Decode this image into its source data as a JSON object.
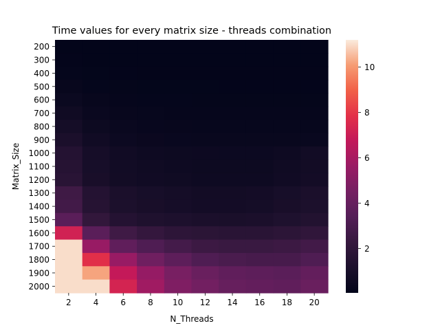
{
  "chart_data": {
    "type": "heatmap",
    "title": "Time values for every matrix size - threads combination",
    "xlabel": "N_Threads",
    "ylabel": "Matrix_Size",
    "x": [
      "2",
      "4",
      "6",
      "8",
      "10",
      "12",
      "14",
      "16",
      "18",
      "20"
    ],
    "y": [
      "200",
      "300",
      "400",
      "500",
      "600",
      "700",
      "800",
      "900",
      "1000",
      "1100",
      "1200",
      "1300",
      "1400",
      "1500",
      "1600",
      "1700",
      "1800",
      "1900",
      "2000"
    ],
    "values": [
      [
        0.05,
        0.04,
        0.04,
        0.04,
        0.04,
        0.04,
        0.04,
        0.04,
        0.04,
        0.04
      ],
      [
        0.08,
        0.06,
        0.05,
        0.05,
        0.05,
        0.05,
        0.05,
        0.05,
        0.05,
        0.05
      ],
      [
        0.15,
        0.1,
        0.08,
        0.07,
        0.07,
        0.07,
        0.07,
        0.07,
        0.07,
        0.07
      ],
      [
        0.25,
        0.15,
        0.12,
        0.1,
        0.1,
        0.1,
        0.09,
        0.09,
        0.09,
        0.09
      ],
      [
        0.4,
        0.25,
        0.18,
        0.15,
        0.14,
        0.13,
        0.13,
        0.13,
        0.13,
        0.13
      ],
      [
        0.6,
        0.35,
        0.25,
        0.21,
        0.19,
        0.18,
        0.18,
        0.18,
        0.18,
        0.18
      ],
      [
        0.85,
        0.5,
        0.35,
        0.28,
        0.25,
        0.24,
        0.23,
        0.23,
        0.23,
        0.24
      ],
      [
        1.1,
        0.65,
        0.45,
        0.38,
        0.33,
        0.31,
        0.3,
        0.3,
        0.31,
        0.32
      ],
      [
        1.5,
        0.9,
        0.65,
        0.55,
        0.5,
        0.47,
        0.45,
        0.45,
        0.55,
        0.7
      ],
      [
        1.6,
        0.95,
        0.7,
        0.6,
        0.55,
        0.5,
        0.5,
        0.5,
        0.6,
        0.75
      ],
      [
        1.7,
        1.0,
        0.75,
        0.65,
        0.6,
        0.55,
        0.55,
        0.55,
        0.65,
        0.8
      ],
      [
        2.6,
        1.5,
        1.1,
        0.95,
        0.85,
        0.75,
        0.75,
        0.8,
        0.95,
        1.1
      ],
      [
        2.7,
        1.6,
        1.15,
        1.0,
        0.9,
        0.8,
        0.8,
        0.85,
        1.0,
        1.15
      ],
      [
        3.6,
        2.1,
        1.5,
        1.3,
        1.2,
        1.1,
        1.05,
        1.1,
        1.25,
        1.4
      ],
      [
        7.2,
        3.6,
        2.6,
        2.2,
        1.9,
        1.8,
        1.7,
        1.7,
        1.85,
        2.0
      ],
      [
        11.0,
        5.6,
        3.8,
        3.2,
        2.8,
        2.5,
        2.4,
        2.4,
        2.5,
        2.7
      ],
      [
        11.0,
        7.8,
        5.6,
        4.3,
        3.7,
        3.2,
        3.0,
        2.9,
        2.9,
        3.2
      ],
      [
        11.0,
        10.2,
        6.8,
        5.5,
        4.6,
        4.1,
        3.8,
        3.7,
        3.6,
        3.9
      ],
      [
        11.0,
        11.0,
        7.3,
        5.8,
        4.8,
        4.4,
        4.0,
        3.9,
        3.8,
        4.1
      ]
    ],
    "vmin": 0.04,
    "vmax": 11.2,
    "colormap": "rocket",
    "colorbar_ticks": [
      2,
      4,
      6,
      8,
      10
    ],
    "grid": false,
    "legend": "colorbar-right"
  }
}
